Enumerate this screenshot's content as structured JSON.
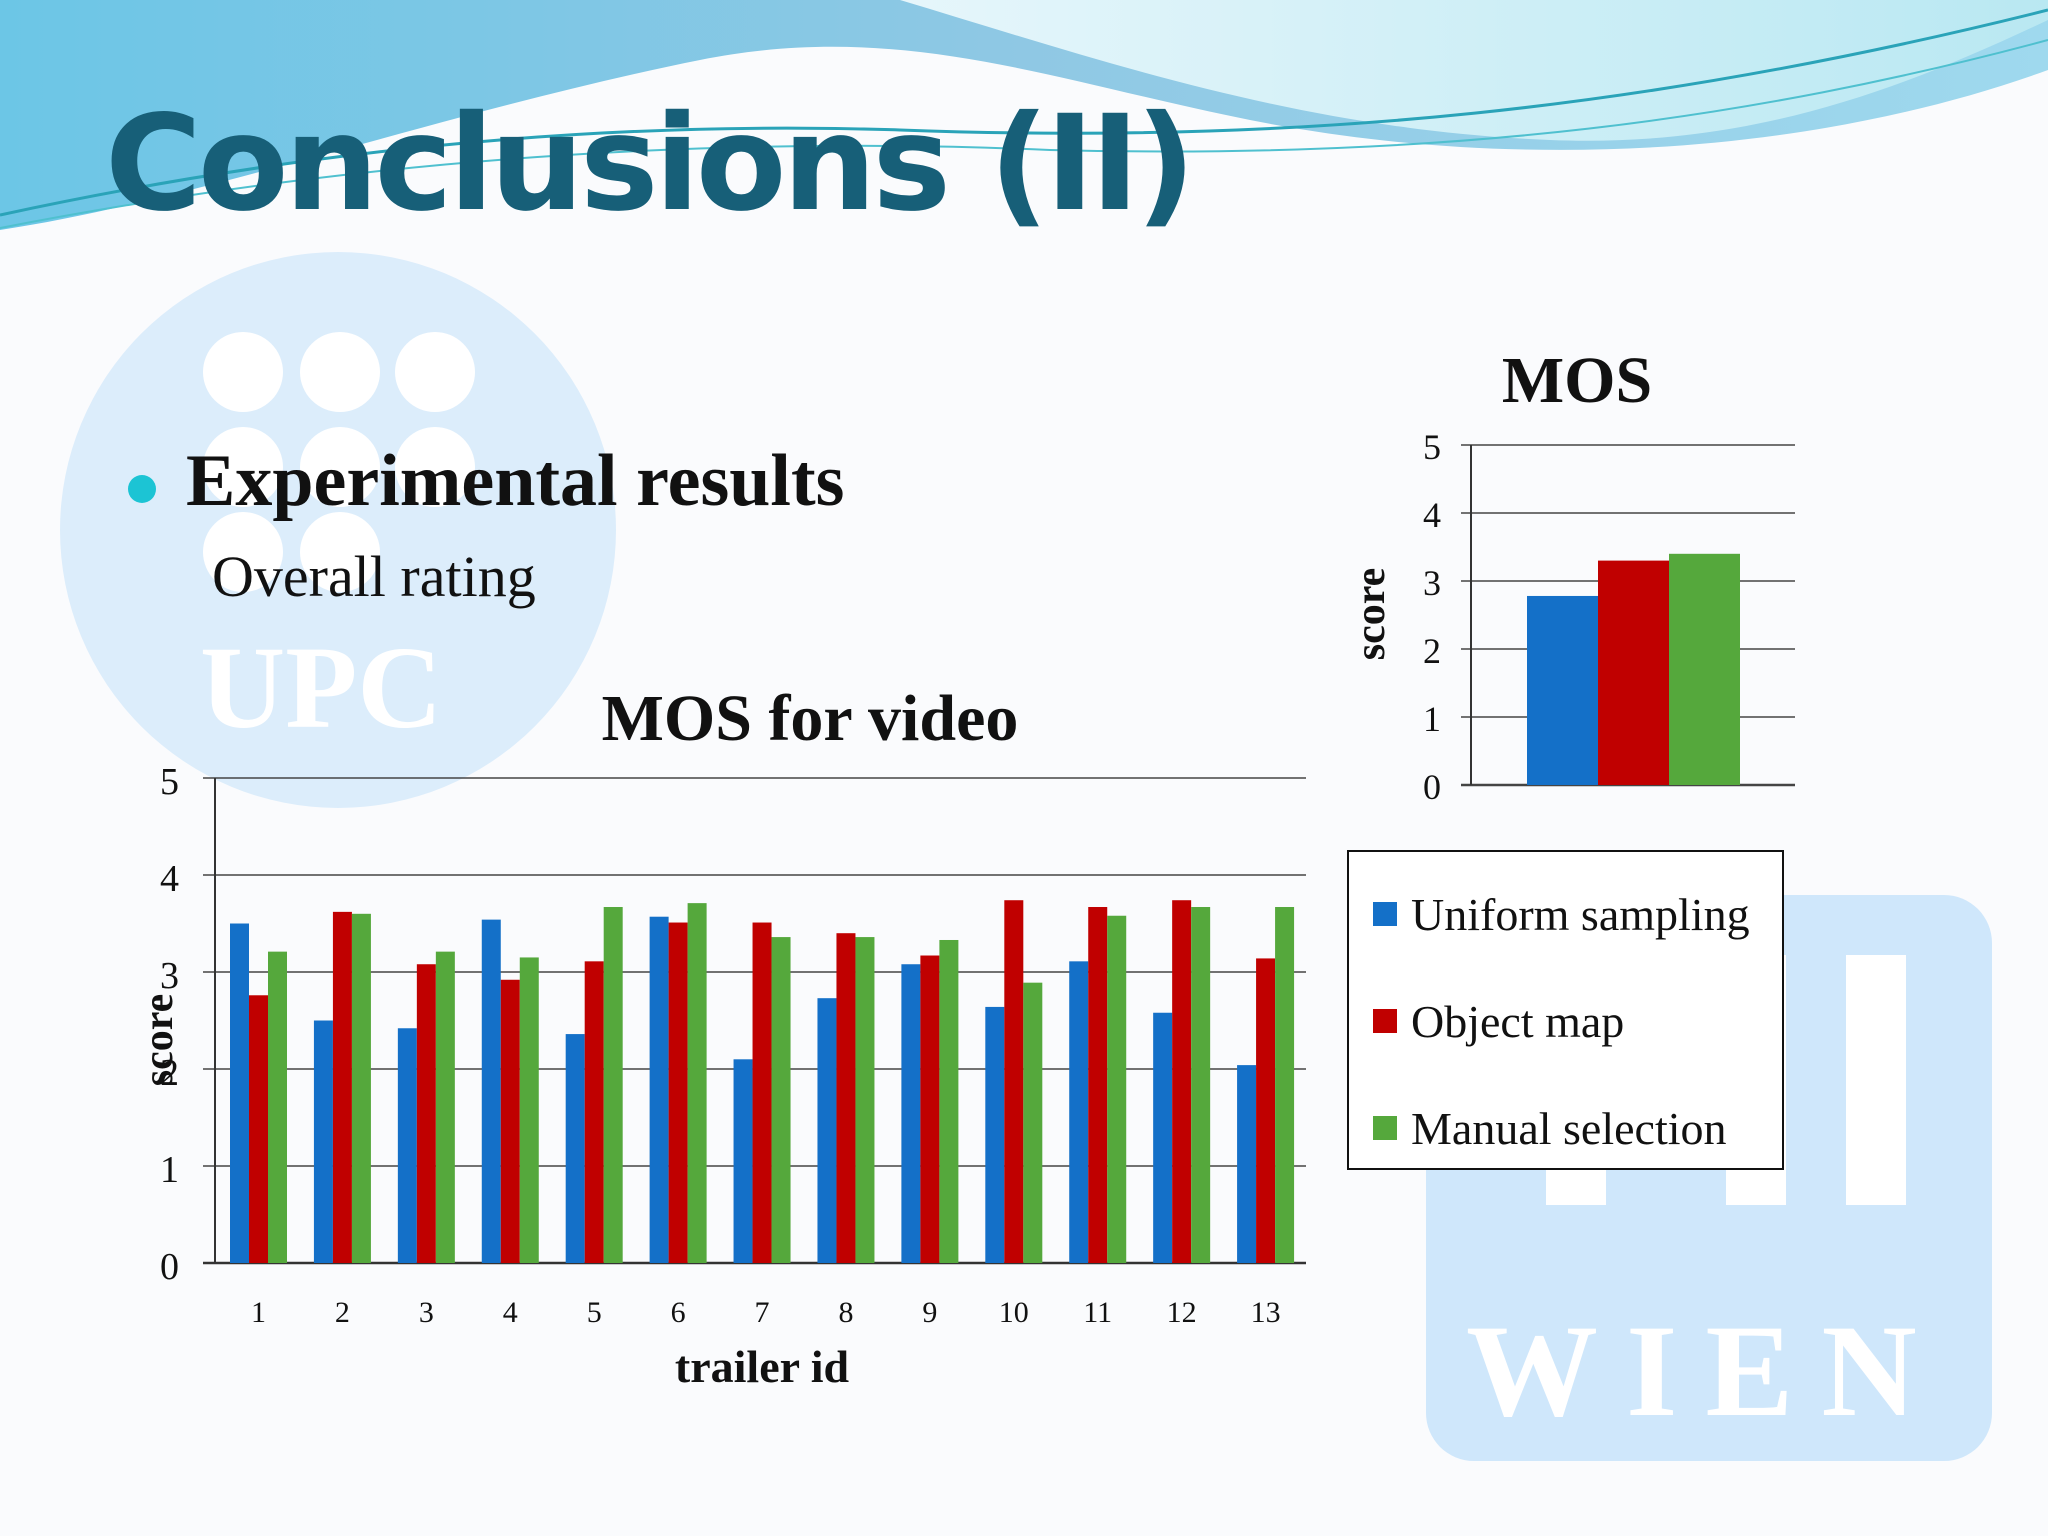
{
  "slide": {
    "title": "Conclusions (II)",
    "bullet": "Experimental results",
    "subtitle": "Overall rating"
  },
  "logos": {
    "upc": "UPC",
    "tuwien": "WIEN"
  },
  "colors": {
    "uniform": "#1470c8",
    "object": "#c00000",
    "manual": "#55a83c",
    "title": "#175f78",
    "bullet": "#1cc4d4"
  },
  "legend": {
    "items": [
      {
        "label": "Uniform sampling",
        "color": "#1470c8"
      },
      {
        "label": "Object map",
        "color": "#c00000"
      },
      {
        "label": "Manual selection",
        "color": "#55a83c"
      }
    ]
  },
  "chart_data": [
    {
      "type": "bar",
      "title": "MOS for video",
      "xlabel": "trailer id",
      "ylabel": "score",
      "ylim": [
        0,
        5
      ],
      "yticks": [
        0,
        1,
        2,
        3,
        4,
        5
      ],
      "grid": true,
      "categories": [
        "1",
        "2",
        "3",
        "4",
        "5",
        "6",
        "7",
        "8",
        "9",
        "10",
        "11",
        "12",
        "13"
      ],
      "series": [
        {
          "name": "Uniform sampling",
          "values": [
            3.5,
            2.5,
            2.42,
            3.54,
            2.36,
            3.57,
            2.1,
            2.73,
            3.08,
            2.64,
            3.11,
            2.58,
            2.04
          ]
        },
        {
          "name": "Object map",
          "values": [
            2.76,
            3.62,
            3.08,
            2.92,
            3.11,
            3.51,
            3.51,
            3.4,
            3.17,
            3.74,
            3.67,
            3.74,
            3.14
          ]
        },
        {
          "name": "Manual selection",
          "values": [
            3.21,
            3.6,
            3.21,
            3.15,
            3.67,
            3.71,
            3.36,
            3.36,
            3.33,
            2.89,
            3.58,
            3.67,
            3.67
          ]
        }
      ]
    },
    {
      "type": "bar",
      "title": "MOS",
      "ylabel": "score",
      "ylim": [
        0,
        5
      ],
      "yticks": [
        0,
        1,
        2,
        3,
        4,
        5
      ],
      "grid": true,
      "series": [
        {
          "name": "Uniform sampling",
          "values": [
            2.78
          ]
        },
        {
          "name": "Object map",
          "values": [
            3.3
          ]
        },
        {
          "name": "Manual selection",
          "values": [
            3.4
          ]
        }
      ]
    }
  ]
}
